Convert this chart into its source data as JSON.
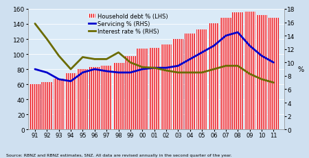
{
  "years": [
    1991,
    1992,
    1993,
    1994,
    1995,
    1996,
    1997,
    1998,
    1999,
    2000,
    2001,
    2002,
    2003,
    2004,
    2005,
    2006,
    2007,
    2008,
    2009,
    2010,
    2011
  ],
  "household_debt": [
    60,
    63,
    67,
    75,
    80,
    83,
    85,
    88,
    97,
    107,
    108,
    113,
    120,
    127,
    133,
    141,
    148,
    155,
    156,
    152,
    148
  ],
  "servicing": [
    9.0,
    8.5,
    7.5,
    7.2,
    8.5,
    9.0,
    8.7,
    8.5,
    8.5,
    9.0,
    9.2,
    9.2,
    9.5,
    10.5,
    11.5,
    12.5,
    14.0,
    14.5,
    12.5,
    11.0,
    10.0
  ],
  "interest_rate": [
    15.8,
    13.5,
    11.0,
    9.0,
    10.8,
    10.5,
    10.5,
    11.5,
    10.0,
    9.3,
    9.2,
    8.8,
    8.5,
    8.5,
    8.5,
    9.0,
    9.5,
    9.5,
    8.3,
    7.5,
    7.0
  ],
  "bar_color": "#e8000a",
  "servicing_color": "#0000cc",
  "interest_color": "#6b6b00",
  "bg_color": "#cfe0f0",
  "plot_bg_color": "#daeaf7",
  "ylim_left": [
    0,
    160
  ],
  "ylim_right": [
    0,
    18
  ],
  "yticks_left": [
    0,
    20,
    40,
    60,
    80,
    100,
    120,
    140,
    160
  ],
  "yticks_right": [
    0,
    2,
    4,
    6,
    8,
    10,
    12,
    14,
    16,
    18
  ],
  "xlabel_source": "Source: RBNZ and RBNZ estimates, SNZ. All data are revised annually in the second quarter of the year.",
  "legend_labels": [
    "Household debt % (LHS)",
    "Servicing % (RHS)",
    "Interest rate % (RHS)"
  ]
}
